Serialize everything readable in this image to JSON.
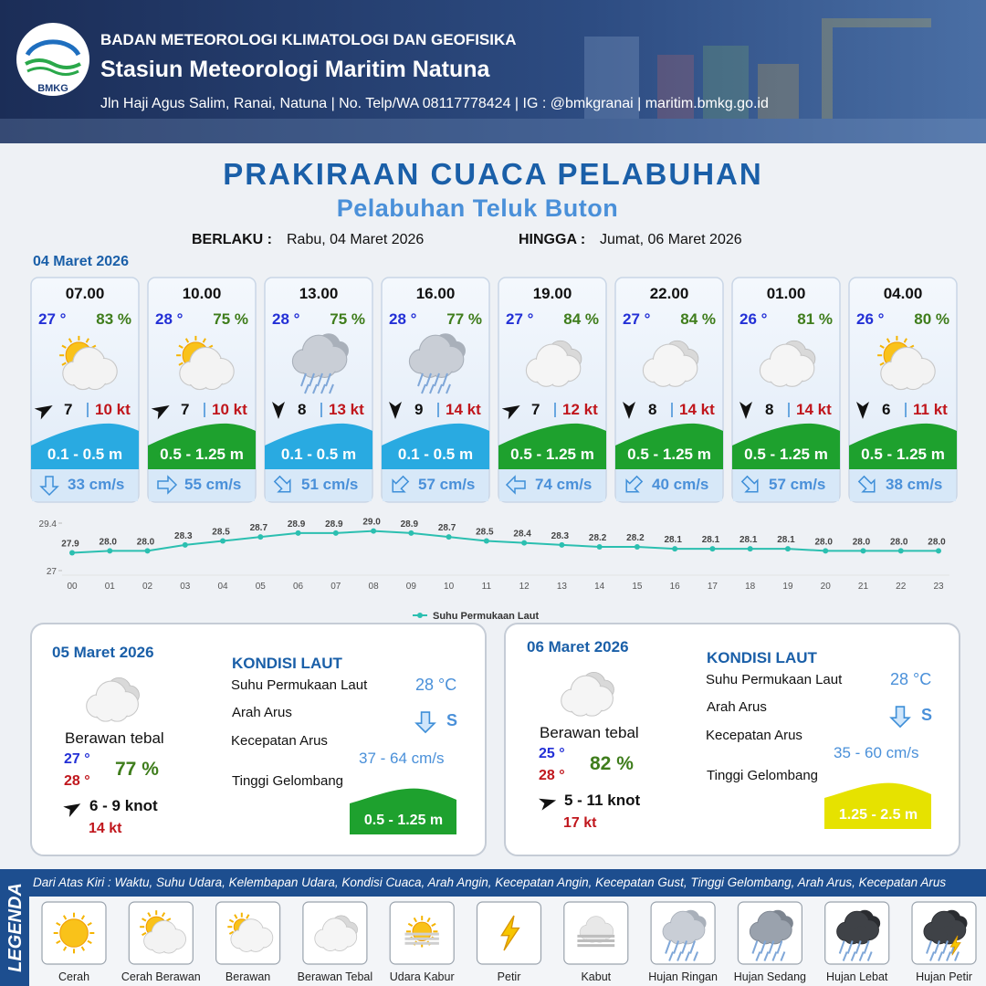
{
  "header": {
    "logo": "BMKG",
    "agency": "BADAN METEOROLOGI KLIMATOLOGI DAN GEOFISIKA",
    "station": "Stasiun Meteorologi Maritim Natuna",
    "address": "Jln Haji Agus Salim, Ranai, Natuna  | No. Telp/WA 08117778424 | IG : @bmkgranai | maritim.bmkg.go.id"
  },
  "title": "PRAKIRAAN CUACA PELABUHAN",
  "subtitle": "Pelabuhan Teluk Buton",
  "validity": {
    "from_label": "BERLAKU :",
    "from": "Rabu, 04 Maret 2026",
    "to_label": "HINGGA :",
    "to": "Jumat, 06 Maret 2026"
  },
  "day1": {
    "date": "04 Maret 2026",
    "cards": [
      {
        "time": "07.00",
        "temp": "27 °",
        "humidity": "83 %",
        "wind": "7",
        "gust": "10 kt",
        "wave": "0.1 - 0.5 m",
        "current": "33 cm/s"
      },
      {
        "time": "10.00",
        "temp": "28 °",
        "humidity": "75 %",
        "wind": "7",
        "gust": "10 kt",
        "wave": "0.5 - 1.25 m",
        "current": "55 cm/s"
      },
      {
        "time": "13.00",
        "temp": "28 °",
        "humidity": "75 %",
        "wind": "8",
        "gust": "13 kt",
        "wave": "0.1 - 0.5 m",
        "current": "51 cm/s"
      },
      {
        "time": "16.00",
        "temp": "28 °",
        "humidity": "77 %",
        "wind": "9",
        "gust": "14 kt",
        "wave": "0.1 - 0.5 m",
        "current": "57 cm/s"
      },
      {
        "time": "19.00",
        "temp": "27 °",
        "humidity": "84 %",
        "wind": "7",
        "gust": "12 kt",
        "wave": "0.5 - 1.25 m",
        "current": "74 cm/s"
      },
      {
        "time": "22.00",
        "temp": "27 °",
        "humidity": "84 %",
        "wind": "8",
        "gust": "14 kt",
        "wave": "0.5 - 1.25 m",
        "current": "40 cm/s"
      },
      {
        "time": "01.00",
        "temp": "26 °",
        "humidity": "81 %",
        "wind": "8",
        "gust": "14 kt",
        "wave": "0.5 - 1.25 m",
        "current": "57 cm/s"
      },
      {
        "time": "04.00",
        "temp": "26 °",
        "humidity": "80 %",
        "wind": "6",
        "gust": "11 kt",
        "wave": "0.5 - 1.25 m",
        "current": "38 cm/s"
      }
    ]
  },
  "chart_data": {
    "type": "line",
    "categories": [
      "00",
      "01",
      "02",
      "03",
      "04",
      "05",
      "06",
      "07",
      "08",
      "09",
      "10",
      "11",
      "12",
      "13",
      "14",
      "15",
      "16",
      "17",
      "18",
      "19",
      "20",
      "21",
      "22",
      "23"
    ],
    "series": [
      {
        "name": "Suhu Permukaan Laut",
        "color": "#2bbfb0",
        "values": [
          27.9,
          28.0,
          28.0,
          28.3,
          28.5,
          28.7,
          28.9,
          28.9,
          29.0,
          28.9,
          28.7,
          28.5,
          28.4,
          28.3,
          28.2,
          28.2,
          28.1,
          28.1,
          28.1,
          28.1,
          28.0,
          28.0,
          28.0,
          28.0
        ],
        "value_labels": [
          "27.9",
          "28.0",
          "28.0",
          "28.3",
          "28.5",
          "28.7",
          "28.9",
          "28.9",
          "29.0",
          "28.9",
          "28.7",
          "28.5",
          "28.4",
          "28.3",
          "28.2",
          "28.2",
          "28.1",
          "28.1",
          "28.1",
          "28.1",
          "28.0",
          "28.0",
          "28.0",
          "28.0"
        ]
      }
    ],
    "ylim": [
      27,
      29.4
    ],
    "yticks": [
      27,
      29.4
    ],
    "grid": false,
    "legend": "bottom"
  },
  "days": [
    {
      "date": "05 Maret 2026",
      "weather": "Berawan tebal",
      "temp_min": "27 °",
      "temp_max": "28 °",
      "humidity": "77 %",
      "wind": "6 - 9 knot",
      "gust": "14 kt",
      "sea_title": "KONDISI LAUT",
      "sst_label": "Suhu Permukaan Laut",
      "sst": "28 °C",
      "current_dir_label": "Arah Arus",
      "current_dir": "S",
      "current_speed_label": "Kecepatan Arus",
      "current_speed": "37 - 64 cm/s",
      "wave_label": "Tinggi Gelombang",
      "wave": "0.5 - 1.25 m"
    },
    {
      "date": "06 Maret 2026",
      "weather": "Berawan tebal",
      "temp_min": "25 °",
      "temp_max": "28 °",
      "humidity": "82 %",
      "wind": "5 - 11 knot",
      "gust": "17 kt",
      "sea_title": "KONDISI LAUT",
      "sst_label": "Suhu Permukaan Laut",
      "sst": "28 °C",
      "current_dir_label": "Arah Arus",
      "current_dir": "S",
      "current_speed_label": "Kecepatan Arus",
      "current_speed": "35 - 60 cm/s",
      "wave_label": "Tinggi Gelombang",
      "wave": "1.25 - 2.5 m"
    }
  ],
  "legend": {
    "title": "LEGENDA",
    "description": "Dari Atas Kiri : Waktu, Suhu Udara, Kelembapan Udara, Kondisi Cuaca, Arah Angin, Kecepatan Angin, Kecepatan Gust, Tinggi Gelombang, Arah Arus, Kecepatan Arus",
    "items": [
      "Cerah",
      "Cerah Berawan",
      "Berawan",
      "Berawan Tebal",
      "Udara Kabur",
      "Petir",
      "Kabut",
      "Hujan Ringan",
      "Hujan Sedang",
      "Hujan Lebat",
      "Hujan Petir"
    ]
  }
}
